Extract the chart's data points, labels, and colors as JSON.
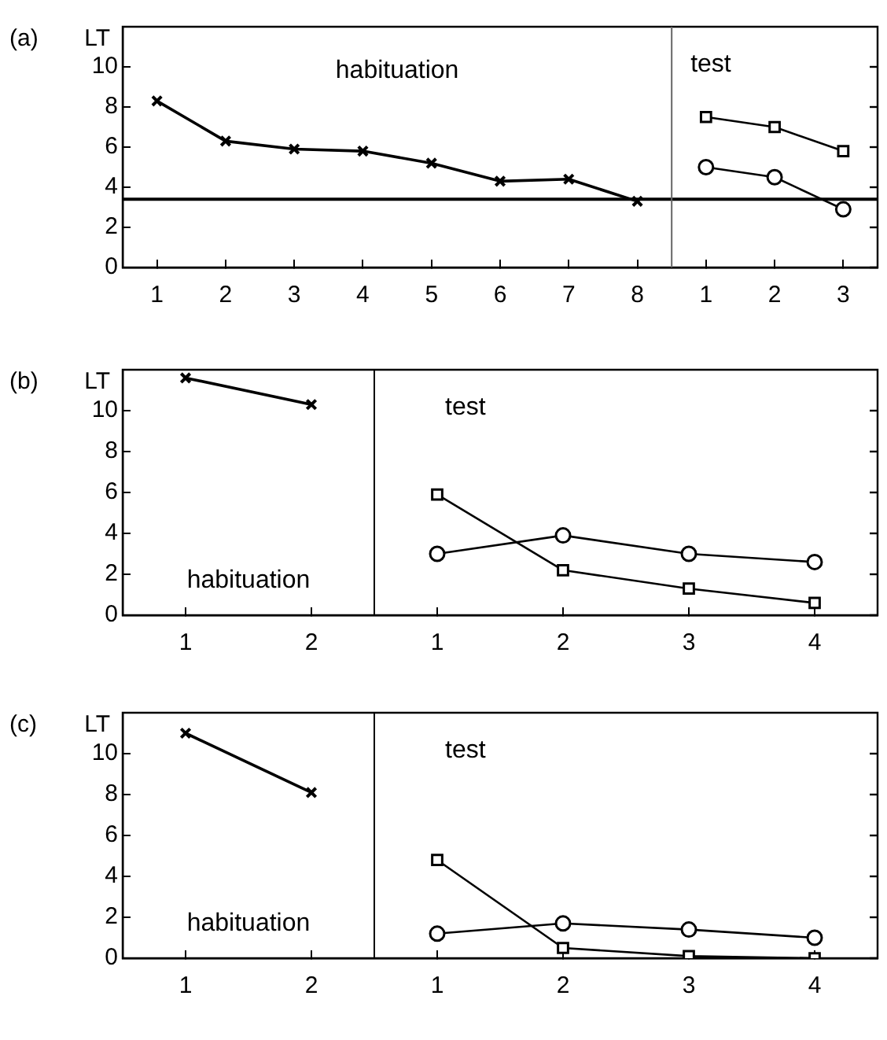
{
  "chart_data": [
    {
      "type": "line",
      "title": "(a)",
      "ylabel": "LT",
      "categories": [
        "1",
        "2",
        "3",
        "4",
        "5",
        "6",
        "7",
        "8",
        "1",
        "2",
        "3"
      ],
      "ylim": [
        0,
        12
      ],
      "yticks": [
        0,
        2,
        4,
        6,
        8,
        10
      ],
      "grid": false,
      "legend": false,
      "annotations": [
        "habituation",
        "test"
      ],
      "ref_lines": [
        {
          "axis": "y",
          "value": 3.4,
          "color": "#000000",
          "line_style": "solid"
        }
      ],
      "series": [
        {
          "color": "#000000",
          "marker": "cross",
          "values": [
            8.3,
            6.3,
            5.9,
            5.8,
            5.2,
            4.3,
            4.4,
            3.3,
            null,
            null,
            null
          ]
        },
        {
          "color": "#000000",
          "marker": "square",
          "values": [
            null,
            null,
            null,
            null,
            null,
            null,
            null,
            null,
            7.5,
            7.0,
            5.8
          ]
        },
        {
          "color": "#000000",
          "marker": "circle",
          "values": [
            null,
            null,
            null,
            null,
            null,
            null,
            null,
            null,
            5.0,
            4.5,
            2.9
          ]
        }
      ]
    },
    {
      "type": "line",
      "title": "(b)",
      "ylabel": "LT",
      "categories": [
        "1",
        "2",
        "1",
        "2",
        "3",
        "4"
      ],
      "ylim": [
        0,
        12
      ],
      "yticks": [
        0,
        2,
        4,
        6,
        8,
        10
      ],
      "grid": false,
      "legend": false,
      "annotations": [
        "habituation",
        "test"
      ],
      "series": [
        {
          "color": "#000000",
          "marker": "cross",
          "values": [
            11.6,
            10.3,
            null,
            null,
            null,
            null
          ]
        },
        {
          "color": "#000000",
          "marker": "square",
          "values": [
            null,
            null,
            5.9,
            2.2,
            1.3,
            0.6
          ]
        },
        {
          "color": "#000000",
          "marker": "circle",
          "values": [
            null,
            null,
            3.0,
            3.9,
            3.0,
            2.6
          ]
        }
      ]
    },
    {
      "type": "line",
      "title": "(c)",
      "ylabel": "LT",
      "categories": [
        "1",
        "2",
        "1",
        "2",
        "3",
        "4"
      ],
      "ylim": [
        0,
        12
      ],
      "yticks": [
        0,
        2,
        4,
        6,
        8,
        10
      ],
      "grid": false,
      "legend": false,
      "annotations": [
        "habituation",
        "test"
      ],
      "series": [
        {
          "color": "#000000",
          "marker": "cross",
          "values": [
            11.0,
            8.1,
            null,
            null,
            null,
            null
          ]
        },
        {
          "color": "#000000",
          "marker": "square",
          "values": [
            null,
            null,
            4.8,
            0.5,
            0.1,
            0.0
          ]
        },
        {
          "color": "#000000",
          "marker": "circle",
          "values": [
            null,
            null,
            1.2,
            1.7,
            1.4,
            1.0
          ]
        }
      ]
    }
  ]
}
